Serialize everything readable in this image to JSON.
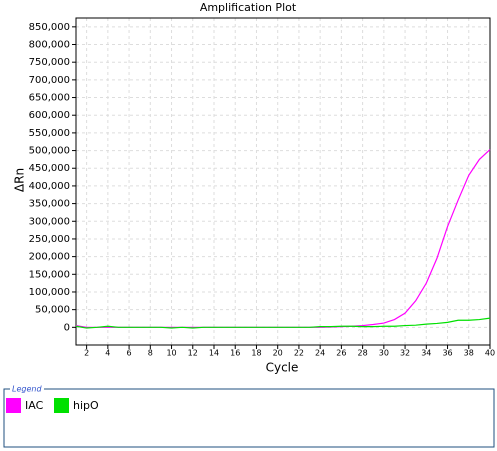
{
  "chart_data": {
    "type": "line",
    "title": "Amplification Plot",
    "x_label": "Cycle",
    "y_label": "ΔRn",
    "x": [
      1,
      2,
      3,
      4,
      5,
      6,
      7,
      8,
      9,
      10,
      11,
      12,
      13,
      14,
      15,
      16,
      17,
      18,
      19,
      20,
      21,
      22,
      23,
      24,
      25,
      26,
      27,
      28,
      29,
      30,
      31,
      32,
      33,
      34,
      35,
      36,
      37,
      38,
      39,
      40
    ],
    "series": [
      {
        "name": "IAC",
        "color": "#ff00ff",
        "values": [
          5000,
          0,
          0,
          0,
          0,
          0,
          0,
          0,
          0,
          0,
          0,
          0,
          0,
          0,
          0,
          0,
          0,
          0,
          0,
          0,
          0,
          0,
          0,
          0,
          1000,
          2000,
          3000,
          5000,
          8000,
          12000,
          22000,
          40000,
          75000,
          125000,
          195000,
          285000,
          360000,
          430000,
          475000,
          503000
        ]
      },
      {
        "name": "hipO",
        "color": "#00e000",
        "values": [
          3000,
          -2000,
          0,
          3000,
          0,
          0,
          0,
          0,
          0,
          -2000,
          0,
          -2000,
          0,
          0,
          0,
          0,
          0,
          0,
          0,
          0,
          0,
          0,
          0,
          2000,
          2000,
          3000,
          3000,
          2000,
          2000,
          3000,
          3000,
          5000,
          6000,
          9000,
          11000,
          14000,
          20000,
          20000,
          22000,
          26000
        ]
      }
    ],
    "xlim": [
      1,
      40
    ],
    "xticks": [
      2,
      4,
      6,
      8,
      10,
      12,
      14,
      16,
      18,
      20,
      22,
      24,
      26,
      28,
      30,
      32,
      34,
      36,
      38,
      40
    ],
    "ylim": [
      -50000,
      875000
    ],
    "yticks": [
      0,
      {
        "value": 50000,
        "label": "50,000"
      },
      {
        "value": 100000,
        "label": "100,000"
      },
      {
        "value": 150000,
        "label": "150,000"
      },
      {
        "value": 200000,
        "label": "200,000"
      },
      {
        "value": 250000,
        "label": "250,000"
      },
      {
        "value": 300000,
        "label": "300,000"
      },
      {
        "value": 350000,
        "label": "350,000"
      },
      {
        "value": 400000,
        "label": "400,000"
      },
      {
        "value": 450000,
        "label": "450,000"
      },
      {
        "value": 500000,
        "label": "500,000"
      },
      {
        "value": 550000,
        "label": "550,000"
      },
      {
        "value": 600000,
        "label": "600,000"
      },
      {
        "value": 650000,
        "label": "650,000"
      },
      {
        "value": 700000,
        "label": "700,000"
      },
      {
        "value": 750000,
        "label": "750,000"
      },
      {
        "value": 800000,
        "label": "800,000"
      },
      {
        "value": 850000,
        "label": "850,000"
      }
    ],
    "grid": true,
    "legend_title": "Legend"
  }
}
